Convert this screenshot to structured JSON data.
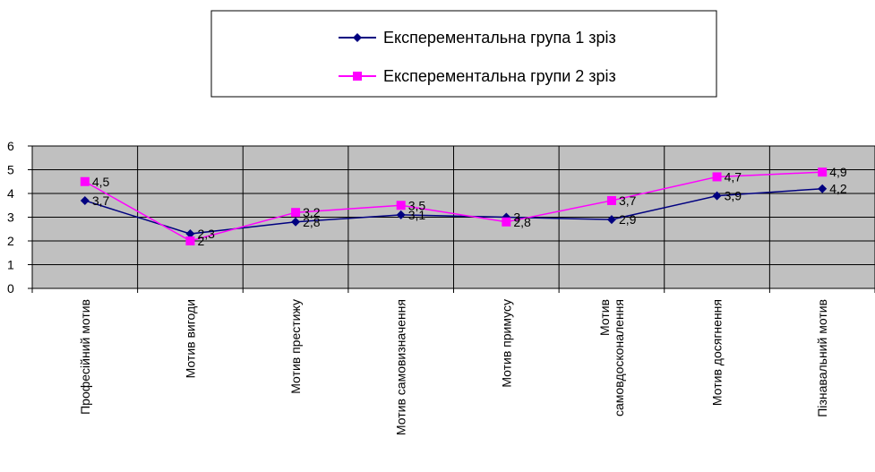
{
  "chart_data": {
    "type": "line",
    "title": "",
    "xlabel": "",
    "ylabel": "",
    "ylim": [
      0,
      6
    ],
    "yticks": [
      "0",
      "1",
      "2",
      "3",
      "4",
      "5",
      "6"
    ],
    "grid": true,
    "legend_position": "top",
    "plot_background": "#c0c0c0",
    "categories": [
      "Професійний мотив",
      "Мотив вигоди",
      "Мотив престижу",
      "Мотив самовизначення",
      "Мотив примусу",
      "Мотив самовдосконалення",
      "Мотив досягнення",
      "Пізнавальний мотив"
    ],
    "category_lines": [
      [
        "Професійний мотив"
      ],
      [
        "Мотив вигоди"
      ],
      [
        "Мотив  престижу"
      ],
      [
        "Мотив  самовизначення"
      ],
      [
        "Мотив  примусу"
      ],
      [
        "Мотив",
        "самовдосконалення"
      ],
      [
        "Мотив  досягнення"
      ],
      [
        "Пізнавальний мотив"
      ]
    ],
    "series": [
      {
        "name": "Експерементальна група 1 зріз",
        "color": "#000080",
        "marker": "diamond",
        "values": [
          3.7,
          2.3,
          2.8,
          3.1,
          3,
          2.9,
          3.9,
          4.2
        ],
        "labels": [
          "3,7",
          "2,3",
          "2,8",
          "3,1",
          "3",
          "2,9",
          "3,9",
          "4,2"
        ]
      },
      {
        "name": "Експерементальна групи 2 зріз",
        "color": "#ff00ff",
        "marker": "square",
        "values": [
          4.5,
          2,
          3.2,
          3.5,
          2.8,
          3.7,
          4.7,
          4.9
        ],
        "labels": [
          "4,5",
          "2",
          "3,2",
          "3,5",
          "2,8",
          "3,7",
          "4,7",
          "4,9"
        ]
      }
    ]
  }
}
